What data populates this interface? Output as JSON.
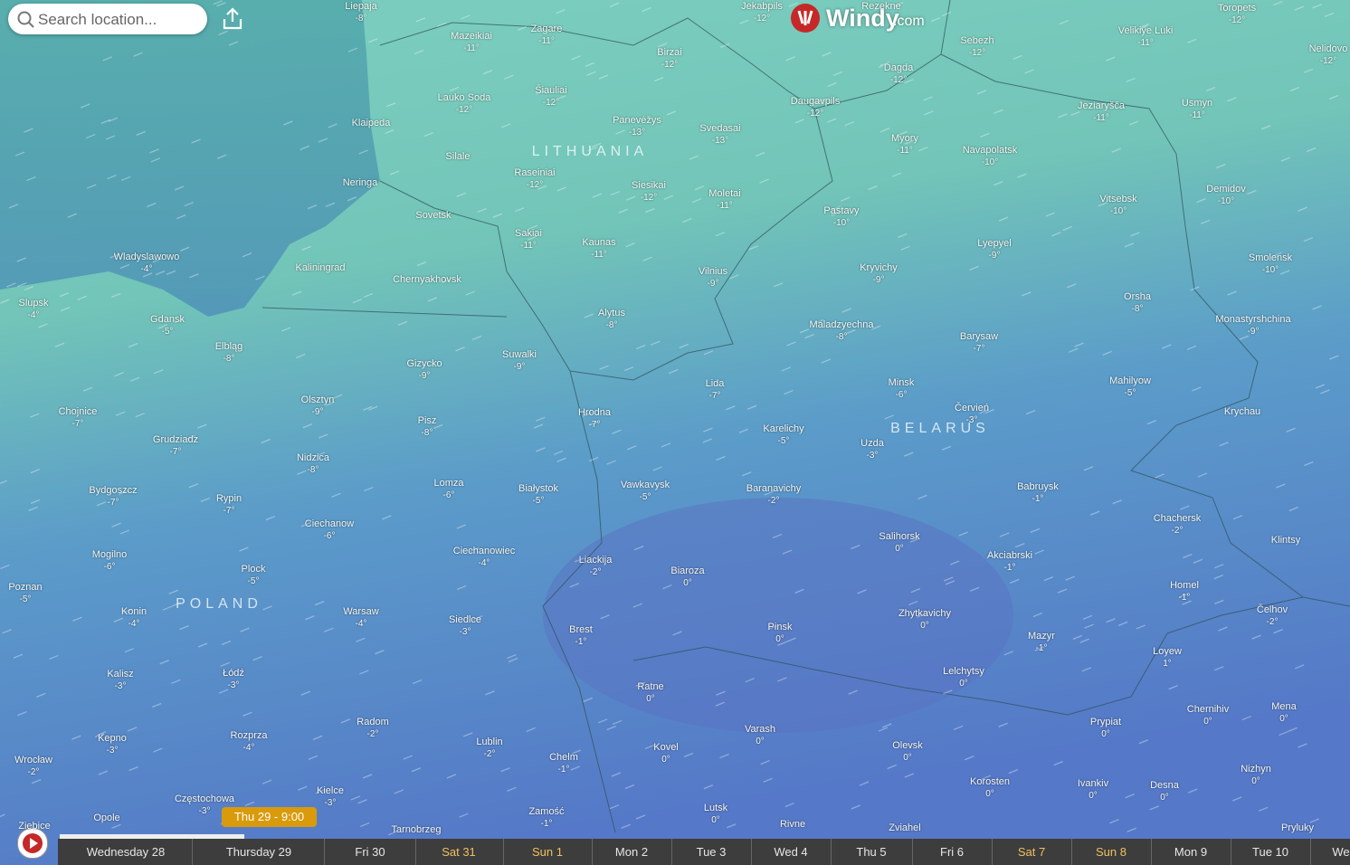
{
  "search": {
    "placeholder": "Search location..."
  },
  "logo": {
    "name": "Windy",
    "suffix": ".com"
  },
  "countries": [
    "LITHUANIA",
    "BELARUS",
    "POLAND"
  ],
  "cities": [
    {
      "name": "Liepaja",
      "temp": "-8°"
    },
    {
      "name": "Jekabpils",
      "temp": "-12°"
    },
    {
      "name": "Rezekne"
    },
    {
      "name": "Toropets",
      "temp": "-12°"
    },
    {
      "name": "Zagare",
      "temp": "-11°"
    },
    {
      "name": "Mazeikiai",
      "temp": "-11°"
    },
    {
      "name": "Birzai",
      "temp": "-12°"
    },
    {
      "name": "Sebezh",
      "temp": "-12°"
    },
    {
      "name": "Velikiye Luki",
      "temp": "-11°"
    },
    {
      "name": "Nelidovo",
      "temp": "-12°"
    },
    {
      "name": "Dagda",
      "temp": "-12°"
    },
    {
      "name": "Šiauliai",
      "temp": "-12°"
    },
    {
      "name": "Lauko Soda",
      "temp": "-12°"
    },
    {
      "name": "Daugavpils",
      "temp": "-12°"
    },
    {
      "name": "Jeziaryšča",
      "temp": "-11°"
    },
    {
      "name": "Usmyn",
      "temp": "-11°"
    },
    {
      "name": "Klaipeda"
    },
    {
      "name": "Panevėžys",
      "temp": "-13°"
    },
    {
      "name": "Svedasai",
      "temp": "-13°"
    },
    {
      "name": "Myory",
      "temp": "-11°"
    },
    {
      "name": "Navapolatsk",
      "temp": "-10°"
    },
    {
      "name": "Silale"
    },
    {
      "name": "Raseiniai",
      "temp": "-12°"
    },
    {
      "name": "Siesikai",
      "temp": "-12°"
    },
    {
      "name": "Vitsebsk",
      "temp": "-10°"
    },
    {
      "name": "Demidov",
      "temp": "-10°"
    },
    {
      "name": "Moletai",
      "temp": "-11°"
    },
    {
      "name": "Neringa"
    },
    {
      "name": "Pastavy",
      "temp": "-10°"
    },
    {
      "name": "Sovetsk"
    },
    {
      "name": "Sakiai",
      "temp": "-11°"
    },
    {
      "name": "Kaunas",
      "temp": "-11°"
    },
    {
      "name": "Lyepyel",
      "temp": "-9°"
    },
    {
      "name": "Wladyslawowo",
      "temp": "-4°"
    },
    {
      "name": "Kaliningrad"
    },
    {
      "name": "Kryvichy",
      "temp": "-9°"
    },
    {
      "name": "Smolensk",
      "temp": "-10°"
    },
    {
      "name": "Vilnius",
      "temp": "-9°"
    },
    {
      "name": "Chernyakhovsk"
    },
    {
      "name": "Slupsk",
      "temp": "-4°"
    },
    {
      "name": "Orsha",
      "temp": "-8°"
    },
    {
      "name": "Alytus",
      "temp": "-8°"
    },
    {
      "name": "Gdansk",
      "temp": "-5°"
    },
    {
      "name": "Monastyrshchina",
      "temp": "-9°"
    },
    {
      "name": "Maladzyechna",
      "temp": "-8°"
    },
    {
      "name": "Barysaw",
      "temp": "-7°"
    },
    {
      "name": "Elbląg",
      "temp": "-8°"
    },
    {
      "name": "Suwalki",
      "temp": "-9°"
    },
    {
      "name": "Gizycko",
      "temp": "-9°"
    },
    {
      "name": "Mahilyow",
      "temp": "-5°"
    },
    {
      "name": "Lida",
      "temp": "-7°"
    },
    {
      "name": "Minsk",
      "temp": "-6°"
    },
    {
      "name": "Olsztyn",
      "temp": "-9°"
    },
    {
      "name": "Chojnice",
      "temp": "-7°"
    },
    {
      "name": "Krychau"
    },
    {
      "name": "Hrodna",
      "temp": "-7°"
    },
    {
      "name": "Červień",
      "temp": "-3°"
    },
    {
      "name": "Pisz",
      "temp": "-8°"
    },
    {
      "name": "Karelichy",
      "temp": "-5°"
    },
    {
      "name": "Grudziadz",
      "temp": "-7°"
    },
    {
      "name": "Uzda",
      "temp": "-3°"
    },
    {
      "name": "Nidzica",
      "temp": "-8°"
    },
    {
      "name": "Lomza",
      "temp": "-6°"
    },
    {
      "name": "Vawkavysk",
      "temp": "-5°"
    },
    {
      "name": "Babruysk",
      "temp": "-1°"
    },
    {
      "name": "Białystok",
      "temp": "-5°"
    },
    {
      "name": "Baranavichy",
      "temp": "-2°"
    },
    {
      "name": "Bydgoszcz",
      "temp": "-7°"
    },
    {
      "name": "Rypin",
      "temp": "-7°"
    },
    {
      "name": "Chachersk",
      "temp": "-2°"
    },
    {
      "name": "Ciechanow",
      "temp": "-6°"
    },
    {
      "name": "Salihorsk",
      "temp": "0°"
    },
    {
      "name": "Klintsy"
    },
    {
      "name": "Ciechanowiec",
      "temp": "-4°"
    },
    {
      "name": "Mogilno",
      "temp": "-6°"
    },
    {
      "name": "Akciabrski",
      "temp": "-1°"
    },
    {
      "name": "Liackija",
      "temp": "-2°"
    },
    {
      "name": "Biaroza",
      "temp": "0°"
    },
    {
      "name": "Plock",
      "temp": "-5°"
    },
    {
      "name": "Homel",
      "temp": "-1°"
    },
    {
      "name": "Poznan",
      "temp": "-5°"
    },
    {
      "name": "Čelhov",
      "temp": "-2°"
    },
    {
      "name": "Konin",
      "temp": "-4°"
    },
    {
      "name": "Warsaw",
      "temp": "-4°"
    },
    {
      "name": "Zhytkavichy",
      "temp": "0°"
    },
    {
      "name": "Siedlce",
      "temp": "-3°"
    },
    {
      "name": "Pinsk",
      "temp": "0°"
    },
    {
      "name": "Brest",
      "temp": "-1°"
    },
    {
      "name": "Mazyr",
      "temp": "-1°"
    },
    {
      "name": "Loyew",
      "temp": "1°"
    },
    {
      "name": "Lelchytsy",
      "temp": "0°"
    },
    {
      "name": "Kalisz",
      "temp": "-3°"
    },
    {
      "name": "Łódź",
      "temp": "-3°"
    },
    {
      "name": "Ratne",
      "temp": "0°"
    },
    {
      "name": "Chernihiv",
      "temp": "0°"
    },
    {
      "name": "Mena",
      "temp": "0°"
    },
    {
      "name": "Radom",
      "temp": "-2°"
    },
    {
      "name": "Prypiat",
      "temp": "0°"
    },
    {
      "name": "Varash",
      "temp": "0°"
    },
    {
      "name": "Kepno",
      "temp": "-3°"
    },
    {
      "name": "Rozprza",
      "temp": "-4°"
    },
    {
      "name": "Lublin",
      "temp": "-2°"
    },
    {
      "name": "Kovel",
      "temp": "0°"
    },
    {
      "name": "Olevsk",
      "temp": "0°"
    },
    {
      "name": "Wrocław",
      "temp": "-2°"
    },
    {
      "name": "Chelm",
      "temp": "-1°"
    },
    {
      "name": "Nizhyn",
      "temp": "0°"
    },
    {
      "name": "Korosten",
      "temp": "0°"
    },
    {
      "name": "Ivankiv",
      "temp": "0°"
    },
    {
      "name": "Desna",
      "temp": "0°"
    },
    {
      "name": "Kielce",
      "temp": "-3°"
    },
    {
      "name": "Częstochowa",
      "temp": "-3°"
    },
    {
      "name": "Lutsk",
      "temp": "0°"
    },
    {
      "name": "Zamość",
      "temp": "-1°"
    },
    {
      "name": "Opole"
    },
    {
      "name": "Rivne"
    },
    {
      "name": "Zviahel"
    },
    {
      "name": "Pryluky"
    },
    {
      "name": "Ziebice"
    },
    {
      "name": "Tarnobrzeg"
    }
  ],
  "timeline": {
    "current": "Thu 29 - 9:00",
    "days": [
      "Wednesday 28",
      "Thursday 29",
      "Fri 30",
      "Sat 31",
      "Sun 1",
      "Mon 2",
      "Tue 3",
      "Wed 4",
      "Thu 5",
      "Fri 6",
      "Sat 7",
      "Sun 8",
      "Mon 9",
      "Tue 10",
      "We"
    ]
  }
}
